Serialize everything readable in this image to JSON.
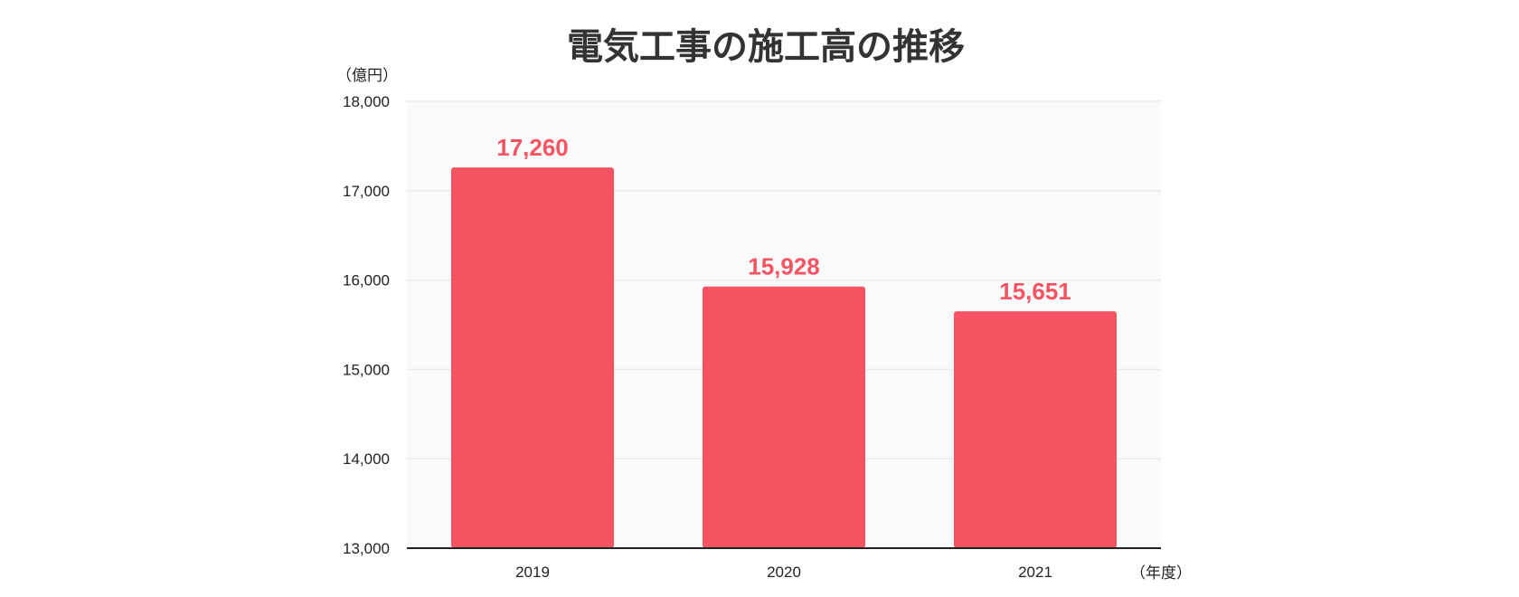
{
  "chart_data": {
    "type": "bar",
    "title": "電気工事の施工高の推移",
    "ylabel": "（億円）",
    "xlabel": "（年度）",
    "categories": [
      "2019",
      "2020",
      "2021"
    ],
    "values": [
      17260,
      15928,
      15651
    ],
    "value_labels": [
      "17,260",
      "15,928",
      "15,651"
    ],
    "ylim": [
      13000,
      18000
    ],
    "y_ticks": [
      13000,
      14000,
      15000,
      16000,
      17000,
      18000
    ],
    "y_tick_labels": [
      "13,000",
      "14,000",
      "15,000",
      "16,000",
      "17,000",
      "18,000"
    ],
    "grid": true,
    "legend": "none",
    "colors": {
      "bar": "#f75463",
      "label": "#f75463",
      "plot_bg": "#f9fafa",
      "grid": "#e9ecec",
      "axis": "#222222"
    }
  }
}
